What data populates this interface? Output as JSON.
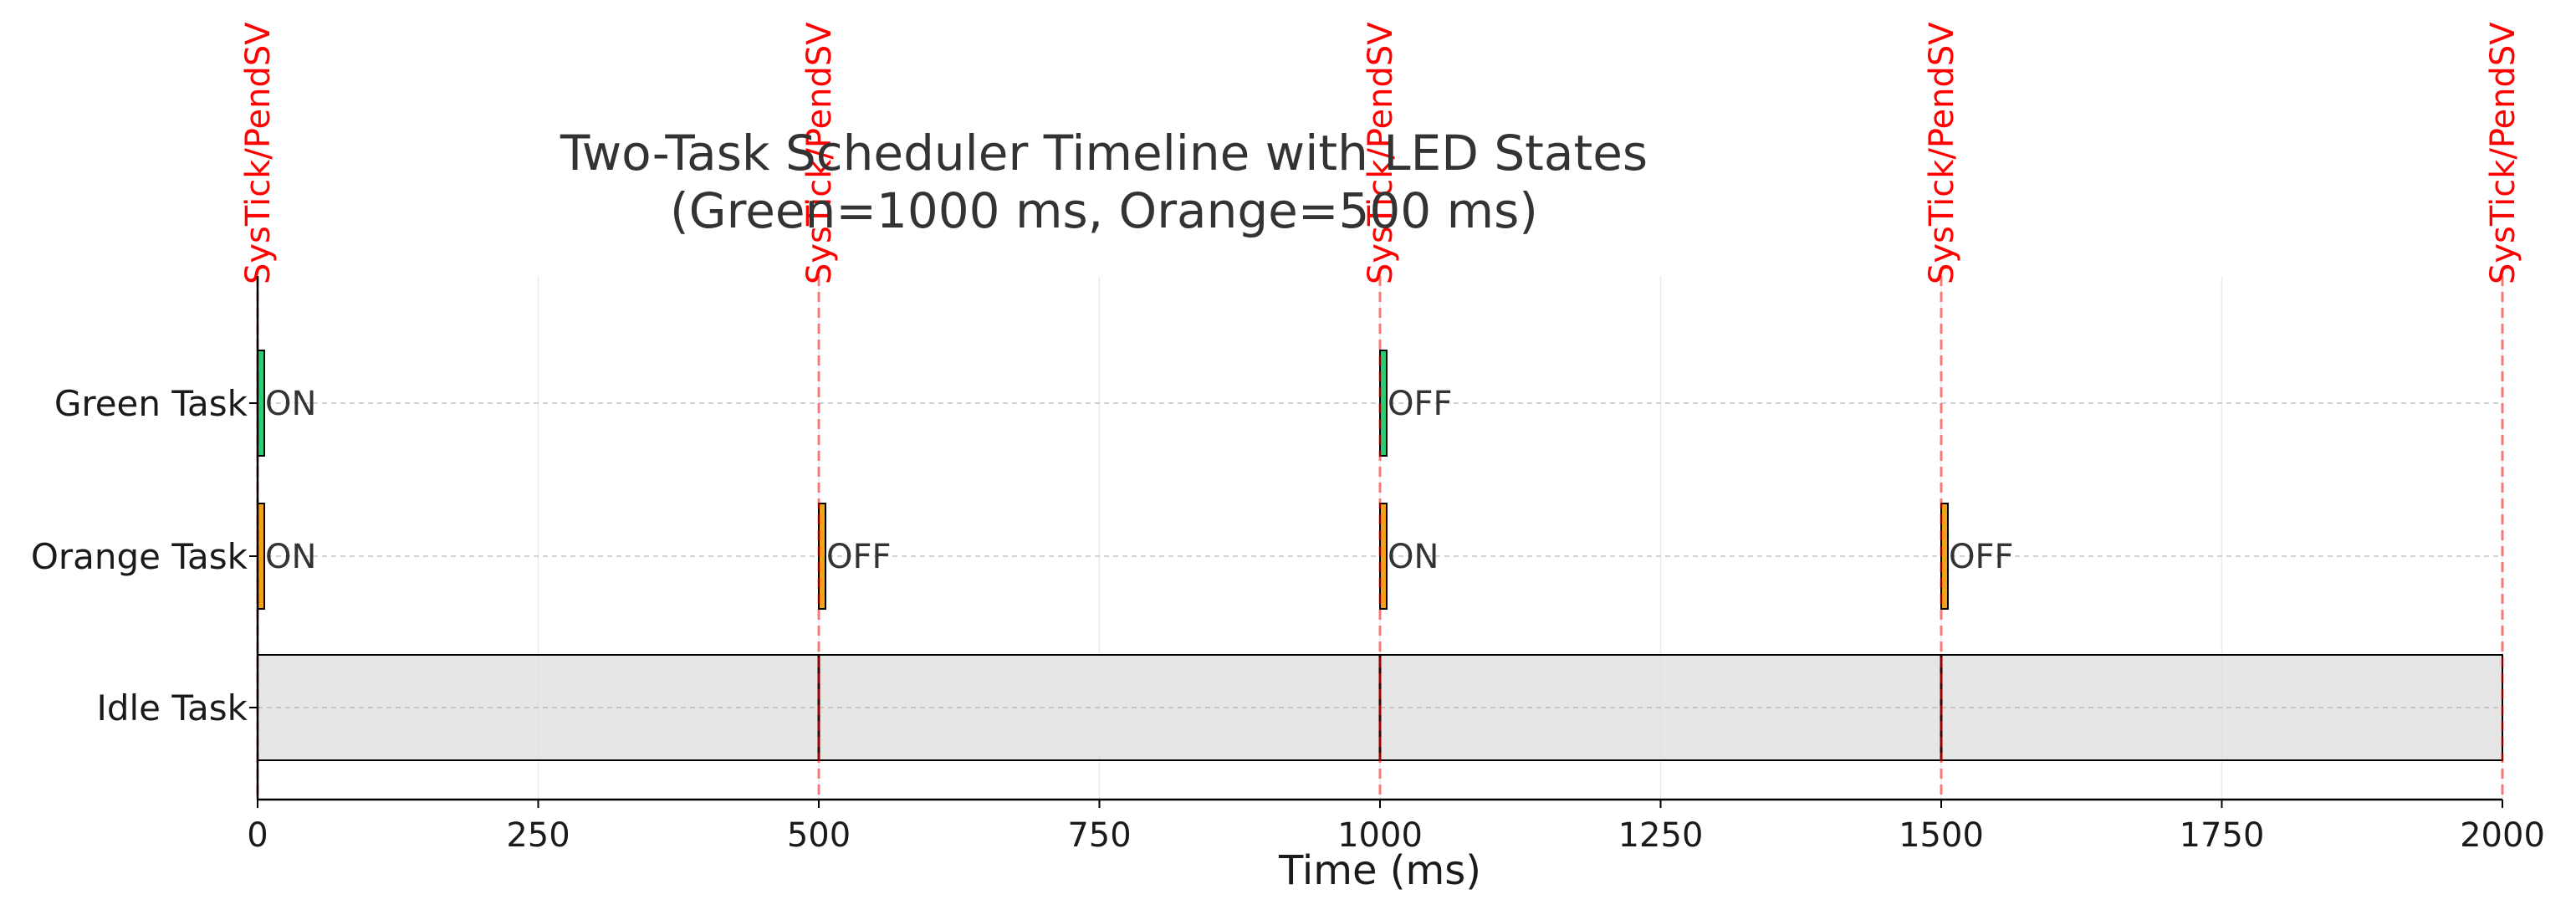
{
  "chart_data": {
    "type": "gantt",
    "title_lines": [
      "Two-Task Scheduler Timeline with LED States",
      "(Green=1000 ms, Orange=500 ms)"
    ],
    "xlabel": "Time (ms)",
    "xlim": [
      0,
      2000
    ],
    "xticks": [
      0,
      250,
      500,
      750,
      1000,
      1250,
      1500,
      1750,
      2000
    ],
    "grid": true,
    "tasks": [
      "Green Task",
      "Orange Task",
      "Idle Task"
    ],
    "events": {
      "label": "SysTick/PendSV",
      "times": [
        0,
        500,
        1000,
        1500,
        2000
      ],
      "color": "#ff0000"
    },
    "bursts": [
      {
        "task": "Green Task",
        "start": 0,
        "end": 5,
        "state": "ON",
        "color": "#2ecc71"
      },
      {
        "task": "Green Task",
        "start": 1000,
        "end": 1005,
        "state": "OFF",
        "color": "#2ecc71"
      },
      {
        "task": "Orange Task",
        "start": 0,
        "end": 5,
        "state": "ON",
        "color": "#f5a01a"
      },
      {
        "task": "Orange Task",
        "start": 500,
        "end": 505,
        "state": "OFF",
        "color": "#f5a01a"
      },
      {
        "task": "Orange Task",
        "start": 1000,
        "end": 1005,
        "state": "ON",
        "color": "#f5a01a"
      },
      {
        "task": "Orange Task",
        "start": 1500,
        "end": 1505,
        "state": "OFF",
        "color": "#f5a01a"
      }
    ],
    "idle": {
      "task": "Idle Task",
      "start": 0,
      "end": 2000,
      "color": "#dddddd"
    }
  }
}
